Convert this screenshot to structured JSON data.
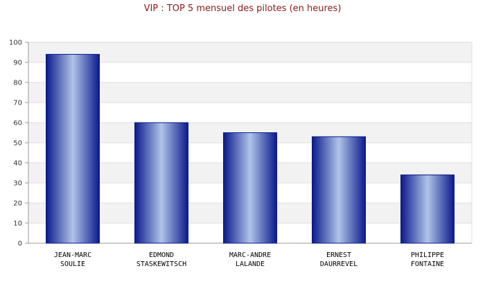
{
  "chart_data": {
    "type": "bar",
    "title": "VIP : TOP 5 mensuel des pilotes (en heures)",
    "xlabel": "",
    "ylabel": "",
    "ylim": [
      0,
      100
    ],
    "yticks": [
      0,
      10,
      20,
      30,
      40,
      50,
      60,
      70,
      80,
      90,
      100
    ],
    "categories": [
      [
        "JEAN-MARC",
        "SOULIE"
      ],
      [
        "EDMOND",
        "STASKEWITSCH"
      ],
      [
        "MARC-ANDRE",
        "LALANDE"
      ],
      [
        "ERNEST",
        "DAURREVEL"
      ],
      [
        "PHILIPPE",
        "FONTAINE"
      ]
    ],
    "values": [
      94,
      60,
      55,
      53,
      34
    ],
    "grid": true,
    "legend": "none",
    "colors": {
      "bar_dark": "#0a1a8c",
      "bar_light": "#b0c4e8",
      "band": "#f2f2f2",
      "grid": "#dddddd",
      "title": "#8b1a1a"
    }
  }
}
